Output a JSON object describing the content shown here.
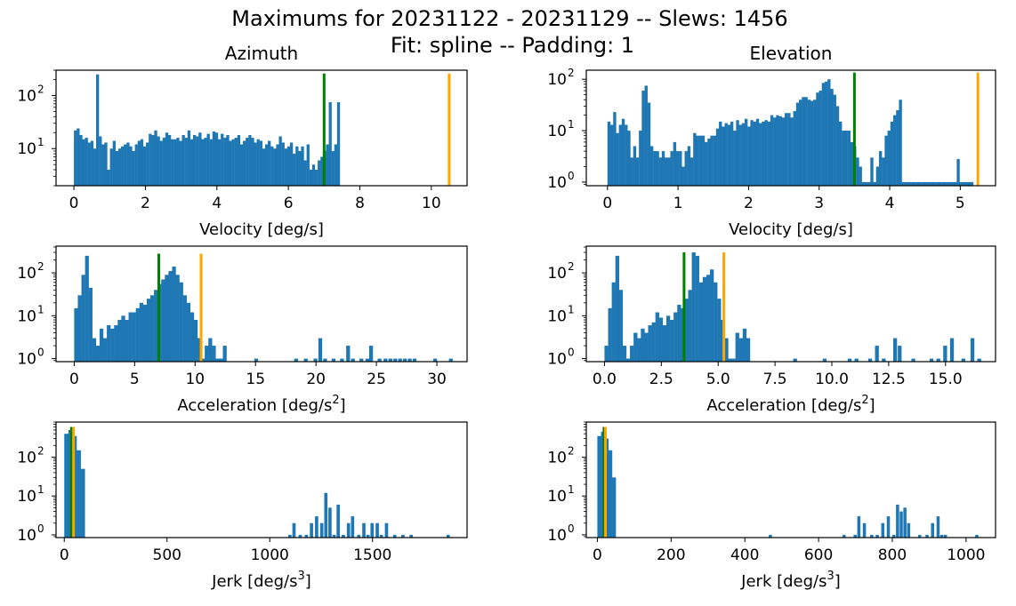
{
  "figure": {
    "title_line1": "Maximums for 20231122 - 20231129 -- Slews: 1456",
    "title_line2": "Fit: spline -- Padding: 1"
  },
  "colors": {
    "bar": "#1f77b4",
    "green_line": "#008000",
    "orange_line": "#ffa500",
    "axis": "#000000"
  },
  "chart_data": [
    {
      "type": "bar",
      "id": "az_vel",
      "title": "Azimuth",
      "xlabel": "Velocity [deg/s]",
      "yscale": "log",
      "xlim": [
        -0.5,
        11.0
      ],
      "ylim": [
        2,
        300
      ],
      "xticks": [
        0,
        2,
        4,
        6,
        8,
        10
      ],
      "yticks": [
        {
          "v": 10,
          "exp": "1"
        },
        {
          "v": 100,
          "exp": "2"
        }
      ],
      "bin_start": 0.0,
      "bin_width": 0.0775,
      "values": [
        22,
        24,
        18,
        15,
        16,
        13,
        14,
        10,
        250,
        17,
        12,
        13,
        4,
        10,
        14,
        9,
        10,
        11,
        12,
        13,
        11,
        9,
        12,
        14,
        15,
        11,
        13,
        19,
        18,
        22,
        17,
        14,
        16,
        20,
        18,
        15,
        15,
        16,
        14,
        18,
        16,
        22,
        15,
        18,
        17,
        20,
        15,
        16,
        19,
        15,
        21,
        20,
        15,
        19,
        16,
        18,
        14,
        15,
        16,
        18,
        12,
        14,
        16,
        18,
        16,
        13,
        15,
        14,
        10,
        12,
        14,
        11,
        10,
        12,
        17,
        13,
        10,
        11,
        13,
        8,
        11,
        9,
        11,
        6,
        12,
        4,
        5,
        4,
        6,
        7,
        9,
        12,
        75,
        9,
        12,
        75
      ],
      "vlines": [
        {
          "x": 7.0,
          "color": "green",
          "top": 260
        },
        {
          "x": 10.5,
          "color": "orange",
          "top": 260
        }
      ]
    },
    {
      "type": "bar",
      "id": "el_vel",
      "title": "Elevation",
      "xlabel": "Velocity [deg/s]",
      "yscale": "log",
      "xlim": [
        -0.3,
        5.5
      ],
      "ylim": [
        0.85,
        150
      ],
      "xticks": [
        0,
        1,
        2,
        3,
        4,
        5
      ],
      "yticks": [
        {
          "v": 1,
          "exp": "0"
        },
        {
          "v": 10,
          "exp": "1"
        },
        {
          "v": 100,
          "exp": "2"
        }
      ],
      "bin_start": 0.0,
      "bin_width": 0.0405,
      "values": [
        15,
        13,
        23,
        9,
        13,
        17,
        13,
        10,
        3,
        5,
        3,
        10,
        60,
        75,
        35,
        5,
        4,
        4,
        3,
        4,
        3,
        3,
        4,
        6,
        4,
        4,
        2,
        4,
        5,
        3,
        9,
        8,
        8,
        8,
        6,
        7,
        8,
        8,
        11,
        15,
        12,
        14,
        13,
        15,
        10,
        16,
        13,
        14,
        17,
        12,
        16,
        15,
        17,
        14,
        15,
        16,
        15,
        20,
        18,
        20,
        19,
        18,
        22,
        22,
        18,
        24,
        35,
        40,
        45,
        45,
        40,
        38,
        40,
        55,
        60,
        85,
        90,
        100,
        65,
        50,
        30,
        15,
        10,
        10,
        10,
        6,
        5,
        3,
        2,
        1,
        1,
        1,
        3,
        1,
        2,
        4,
        3,
        8,
        10,
        15,
        20,
        25,
        40,
        1,
        1,
        1,
        1,
        1,
        1,
        1,
        1,
        1,
        1,
        1,
        1,
        1,
        1,
        1,
        1,
        1,
        1,
        1,
        1,
        1,
        1,
        1,
        1,
        1
      ],
      "extra_bars": [
        {
          "x": 4.95,
          "w": 0.04,
          "v": 2.8
        }
      ],
      "vlines": [
        {
          "x": 3.5,
          "color": "green",
          "top": 135
        },
        {
          "x": 5.25,
          "color": "orange",
          "top": 135
        }
      ]
    },
    {
      "type": "bar",
      "id": "az_acc",
      "xlabel": "Acceleration [deg/s",
      "xlabel_sup": "2",
      "xlabel_tail": "]",
      "yscale": "log",
      "xlim": [
        -1.5,
        32.5
      ],
      "ylim": [
        0.85,
        420
      ],
      "xticks": [
        0,
        5,
        10,
        15,
        20,
        25,
        30
      ],
      "yticks": [
        {
          "v": 1,
          "exp": "0"
        },
        {
          "v": 10,
          "exp": "1"
        },
        {
          "v": 100,
          "exp": "2"
        }
      ],
      "bars": [
        [
          0.0,
          0.3,
          15
        ],
        [
          0.3,
          0.3,
          30
        ],
        [
          0.6,
          0.3,
          90
        ],
        [
          0.9,
          0.3,
          250
        ],
        [
          1.2,
          0.3,
          45
        ],
        [
          1.5,
          0.3,
          3
        ],
        [
          1.8,
          0.3,
          2
        ],
        [
          2.1,
          0.3,
          5
        ],
        [
          2.4,
          0.3,
          3
        ],
        [
          2.7,
          0.3,
          6
        ],
        [
          3.0,
          0.3,
          5
        ],
        [
          3.3,
          0.3,
          6
        ],
        [
          3.6,
          0.3,
          8
        ],
        [
          3.9,
          0.3,
          10
        ],
        [
          4.2,
          0.3,
          8
        ],
        [
          4.5,
          0.3,
          12
        ],
        [
          4.8,
          0.3,
          12
        ],
        [
          5.1,
          0.3,
          15
        ],
        [
          5.4,
          0.3,
          20
        ],
        [
          5.7,
          0.3,
          18
        ],
        [
          6.0,
          0.3,
          25
        ],
        [
          6.3,
          0.3,
          30
        ],
        [
          6.6,
          0.3,
          40
        ],
        [
          6.9,
          0.3,
          55
        ],
        [
          7.2,
          0.3,
          70
        ],
        [
          7.5,
          0.3,
          90
        ],
        [
          7.8,
          0.3,
          110
        ],
        [
          8.1,
          0.3,
          140
        ],
        [
          8.4,
          0.3,
          90
        ],
        [
          8.7,
          0.3,
          60
        ],
        [
          9.0,
          0.3,
          30
        ],
        [
          9.3,
          0.3,
          20
        ],
        [
          9.6,
          0.3,
          12
        ],
        [
          9.9,
          0.3,
          8
        ],
        [
          10.2,
          0.3,
          3
        ],
        [
          10.5,
          0.3,
          1
        ],
        [
          10.8,
          0.3,
          2
        ],
        [
          11.1,
          0.3,
          3
        ],
        [
          11.4,
          0.3,
          2
        ],
        [
          11.7,
          0.3,
          1
        ],
        [
          12.0,
          0.3,
          1
        ],
        [
          12.3,
          0.3,
          2
        ],
        [
          14.9,
          0.3,
          1
        ],
        [
          18.2,
          0.3,
          1
        ],
        [
          19.0,
          0.3,
          1
        ],
        [
          19.8,
          0.3,
          1
        ],
        [
          20.2,
          0.3,
          3
        ],
        [
          20.6,
          0.3,
          1
        ],
        [
          21.3,
          0.3,
          1
        ],
        [
          22.0,
          0.3,
          1
        ],
        [
          22.5,
          0.3,
          2
        ],
        [
          22.9,
          0.3,
          1
        ],
        [
          23.6,
          0.3,
          1
        ],
        [
          24.1,
          0.3,
          1
        ],
        [
          24.4,
          0.3,
          2
        ],
        [
          25.1,
          0.3,
          1
        ],
        [
          25.6,
          0.3,
          1
        ],
        [
          26.0,
          0.3,
          1
        ],
        [
          26.4,
          0.3,
          1
        ],
        [
          26.8,
          0.3,
          1
        ],
        [
          27.2,
          0.3,
          1
        ],
        [
          27.6,
          0.3,
          1
        ],
        [
          28.0,
          0.3,
          1
        ],
        [
          29.7,
          0.3,
          1
        ],
        [
          31.0,
          0.3,
          1
        ]
      ],
      "vlines": [
        {
          "x": 7.0,
          "color": "green",
          "top": 280
        },
        {
          "x": 10.5,
          "color": "orange",
          "top": 280
        }
      ]
    },
    {
      "type": "bar",
      "id": "el_acc",
      "xlabel": "Acceleration [deg/s",
      "xlabel_sup": "2",
      "xlabel_tail": "]",
      "yscale": "log",
      "xlim": [
        -0.8,
        17.2
      ],
      "ylim": [
        0.85,
        420
      ],
      "xticks": [
        0.0,
        2.5,
        5.0,
        7.5,
        10.0,
        12.5,
        15.0
      ],
      "xtick_labels": [
        "0.0",
        "2.5",
        "5.0",
        "7.5",
        "10.0",
        "12.5",
        "15.0"
      ],
      "yticks": [
        {
          "v": 1,
          "exp": "0"
        },
        {
          "v": 10,
          "exp": "1"
        },
        {
          "v": 100,
          "exp": "2"
        }
      ],
      "bars": [
        [
          0.0,
          0.16,
          2
        ],
        [
          0.16,
          0.16,
          15
        ],
        [
          0.32,
          0.16,
          60
        ],
        [
          0.48,
          0.16,
          250
        ],
        [
          0.64,
          0.16,
          40
        ],
        [
          0.8,
          0.16,
          2
        ],
        [
          0.96,
          0.16,
          1
        ],
        [
          1.12,
          0.16,
          2
        ],
        [
          1.28,
          0.16,
          4
        ],
        [
          1.44,
          0.16,
          3
        ],
        [
          1.6,
          0.16,
          5
        ],
        [
          1.76,
          0.16,
          4
        ],
        [
          1.92,
          0.16,
          6
        ],
        [
          2.08,
          0.16,
          7
        ],
        [
          2.24,
          0.16,
          12
        ],
        [
          2.4,
          0.16,
          9
        ],
        [
          2.56,
          0.16,
          6
        ],
        [
          2.72,
          0.16,
          10
        ],
        [
          2.88,
          0.16,
          8
        ],
        [
          3.04,
          0.16,
          12
        ],
        [
          3.2,
          0.16,
          18
        ],
        [
          3.36,
          0.16,
          15
        ],
        [
          3.52,
          0.16,
          25
        ],
        [
          3.68,
          0.16,
          40
        ],
        [
          3.84,
          0.16,
          300
        ],
        [
          4.0,
          0.16,
          250
        ],
        [
          4.16,
          0.16,
          60
        ],
        [
          4.32,
          0.16,
          80
        ],
        [
          4.48,
          0.16,
          90
        ],
        [
          4.64,
          0.16,
          120
        ],
        [
          4.8,
          0.16,
          60
        ],
        [
          4.96,
          0.16,
          25
        ],
        [
          5.12,
          0.16,
          8
        ],
        [
          5.28,
          0.16,
          3
        ],
        [
          5.44,
          0.16,
          1
        ],
        [
          5.6,
          0.16,
          1
        ],
        [
          5.76,
          0.16,
          4
        ],
        [
          5.92,
          0.16,
          3
        ],
        [
          6.08,
          0.16,
          5
        ],
        [
          6.24,
          0.16,
          3
        ],
        [
          8.3,
          0.16,
          1
        ],
        [
          9.6,
          0.16,
          1
        ],
        [
          10.7,
          0.16,
          1
        ],
        [
          11.0,
          0.16,
          1
        ],
        [
          11.6,
          0.16,
          1
        ],
        [
          11.9,
          0.16,
          2
        ],
        [
          12.2,
          0.16,
          1
        ],
        [
          12.7,
          0.16,
          3
        ],
        [
          12.9,
          0.16,
          2
        ],
        [
          13.5,
          0.16,
          1
        ],
        [
          14.3,
          0.16,
          1
        ],
        [
          14.6,
          0.16,
          1
        ],
        [
          14.9,
          0.16,
          2
        ],
        [
          15.2,
          0.16,
          3
        ],
        [
          15.7,
          0.16,
          1
        ],
        [
          16.1,
          0.16,
          3
        ],
        [
          16.4,
          0.16,
          1
        ]
      ],
      "vlines": [
        {
          "x": 3.5,
          "color": "green",
          "top": 300
        },
        {
          "x": 5.25,
          "color": "orange",
          "top": 300
        }
      ]
    },
    {
      "type": "bar",
      "id": "az_jerk",
      "xlabel": "Jerk [deg/s",
      "xlabel_sup": "3",
      "xlabel_tail": "]",
      "yscale": "log",
      "xlim": [
        -40,
        1960
      ],
      "ylim": [
        0.85,
        800
      ],
      "xticks": [
        0,
        500,
        1000,
        1500
      ],
      "yticks": [
        {
          "v": 1,
          "exp": "0"
        },
        {
          "v": 10,
          "exp": "1"
        },
        {
          "v": 100,
          "exp": "2"
        }
      ],
      "bars": [
        [
          0,
          20,
          400
        ],
        [
          20,
          20,
          500
        ],
        [
          40,
          20,
          350
        ],
        [
          60,
          20,
          150
        ],
        [
          80,
          20,
          50
        ],
        [
          1090,
          15,
          1
        ],
        [
          1110,
          15,
          2
        ],
        [
          1140,
          15,
          1
        ],
        [
          1170,
          15,
          1
        ],
        [
          1195,
          15,
          2
        ],
        [
          1220,
          15,
          3
        ],
        [
          1245,
          15,
          2
        ],
        [
          1265,
          15,
          12
        ],
        [
          1285,
          15,
          5
        ],
        [
          1305,
          15,
          1
        ],
        [
          1325,
          15,
          6
        ],
        [
          1350,
          15,
          1
        ],
        [
          1375,
          15,
          2
        ],
        [
          1395,
          15,
          3
        ],
        [
          1425,
          15,
          1
        ],
        [
          1450,
          15,
          2
        ],
        [
          1470,
          15,
          1
        ],
        [
          1490,
          15,
          2
        ],
        [
          1515,
          15,
          2
        ],
        [
          1535,
          15,
          1
        ],
        [
          1560,
          15,
          2
        ],
        [
          1600,
          15,
          1
        ],
        [
          1640,
          15,
          1
        ],
        [
          1680,
          15,
          1
        ],
        [
          1860,
          15,
          1
        ]
      ],
      "vlines": [
        {
          "x": 35,
          "color": "green",
          "top": 600
        },
        {
          "x": 45,
          "color": "orange",
          "top": 600
        }
      ]
    },
    {
      "type": "bar",
      "id": "el_jerk",
      "xlabel": "Jerk [deg/s",
      "xlabel_sup": "3",
      "xlabel_tail": "]",
      "yscale": "log",
      "xlim": [
        -30,
        1080
      ],
      "ylim": [
        0.85,
        800
      ],
      "xticks": [
        0,
        200,
        400,
        600,
        800,
        1000
      ],
      "yticks": [
        {
          "v": 1,
          "exp": "0"
        },
        {
          "v": 10,
          "exp": "1"
        },
        {
          "v": 100,
          "exp": "2"
        }
      ],
      "bars": [
        [
          0,
          10,
          350
        ],
        [
          10,
          10,
          450
        ],
        [
          20,
          10,
          300
        ],
        [
          30,
          10,
          150
        ],
        [
          40,
          10,
          30
        ],
        [
          465,
          8,
          1
        ],
        [
          665,
          8,
          1
        ],
        [
          695,
          8,
          1
        ],
        [
          705,
          8,
          3
        ],
        [
          720,
          8,
          2
        ],
        [
          740,
          8,
          1
        ],
        [
          755,
          8,
          1
        ],
        [
          770,
          8,
          2
        ],
        [
          785,
          8,
          3
        ],
        [
          800,
          8,
          1
        ],
        [
          810,
          8,
          6
        ],
        [
          820,
          8,
          4
        ],
        [
          830,
          8,
          5
        ],
        [
          840,
          8,
          2
        ],
        [
          870,
          8,
          1
        ],
        [
          890,
          8,
          1
        ],
        [
          905,
          8,
          2
        ],
        [
          920,
          8,
          3
        ],
        [
          930,
          8,
          1
        ],
        [
          940,
          8,
          1
        ],
        [
          1025,
          8,
          1
        ]
      ],
      "vlines": [
        {
          "x": 18,
          "color": "green",
          "top": 600
        },
        {
          "x": 22,
          "color": "orange",
          "top": 600
        }
      ]
    }
  ]
}
